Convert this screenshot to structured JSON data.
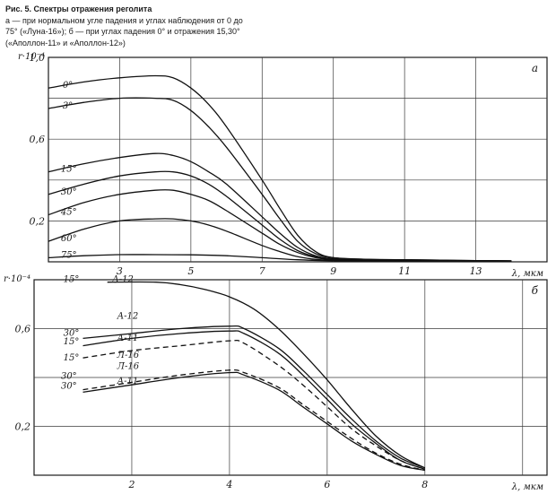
{
  "caption": {
    "title": "Рис. 5.  Спектры отражения реголита",
    "line1": "а — при нормальном угле падения и углах наблюдения от 0 до",
    "line2": "75° («Луна-16»); б — при углах падения 0° и отражения 15,30°",
    "line3": "(«Аполлон-11» и «Аполлон-12»)"
  },
  "chart_data": [
    {
      "type": "line",
      "panel_label": "а",
      "ylabel": "r·10⁻⁴",
      "xlabel": "λ, мкм",
      "xlim": [
        1,
        15
      ],
      "ylim": [
        0,
        1.0
      ],
      "x_ticks": [
        3,
        5,
        7,
        9,
        11,
        13
      ],
      "y_ticks": [
        0.2,
        0.6,
        1.0
      ],
      "y_tick_labels": [
        "0,2",
        "0,6",
        "1,0"
      ],
      "grid": true,
      "series": [
        {
          "name": "0°",
          "x": [
            1,
            2,
            3,
            4,
            4.5,
            5,
            5.5,
            6,
            7,
            7.5,
            8,
            8.5,
            9,
            10,
            11,
            12,
            13,
            14
          ],
          "y": [
            0.85,
            0.88,
            0.9,
            0.91,
            0.9,
            0.85,
            0.77,
            0.66,
            0.4,
            0.26,
            0.13,
            0.05,
            0.02,
            0.012,
            0.01,
            0.008,
            0.006,
            0.005
          ]
        },
        {
          "name": "3°",
          "x": [
            1,
            2,
            3,
            4,
            4.5,
            5,
            5.5,
            6,
            7,
            7.5,
            8,
            8.5,
            9,
            10,
            11,
            12,
            13,
            14
          ],
          "y": [
            0.75,
            0.78,
            0.8,
            0.8,
            0.79,
            0.74,
            0.66,
            0.56,
            0.33,
            0.21,
            0.1,
            0.04,
            0.02,
            0.012,
            0.01,
            0.008,
            0.006,
            0.005
          ]
        },
        {
          "name": "15°",
          "x": [
            1,
            2,
            3,
            4,
            4.5,
            5,
            5.5,
            6,
            7,
            7.5,
            8,
            8.5,
            9,
            10,
            11,
            12,
            13,
            14
          ],
          "y": [
            0.44,
            0.48,
            0.51,
            0.53,
            0.52,
            0.49,
            0.44,
            0.38,
            0.22,
            0.14,
            0.07,
            0.03,
            0.015,
            0.01,
            0.008,
            0.006,
            0.005,
            0.004
          ]
        },
        {
          "name": "30°",
          "x": [
            1,
            2,
            3,
            4,
            4.5,
            5,
            5.5,
            6,
            7,
            7.5,
            8,
            8.5,
            9,
            10,
            11,
            12,
            13,
            14
          ],
          "y": [
            0.33,
            0.38,
            0.42,
            0.44,
            0.44,
            0.42,
            0.38,
            0.32,
            0.18,
            0.11,
            0.055,
            0.025,
            0.012,
            0.008,
            0.006,
            0.005,
            0.004,
            0.004
          ]
        },
        {
          "name": "45°",
          "x": [
            1,
            2,
            3,
            4,
            4.5,
            5,
            5.5,
            6,
            7,
            7.5,
            8,
            8.5,
            9,
            10,
            11,
            12,
            13,
            14
          ],
          "y": [
            0.23,
            0.29,
            0.33,
            0.35,
            0.35,
            0.33,
            0.3,
            0.25,
            0.14,
            0.085,
            0.045,
            0.02,
            0.01,
            0.007,
            0.005,
            0.004,
            0.004,
            0.003
          ]
        },
        {
          "name": "60°",
          "x": [
            1,
            2,
            3,
            4,
            4.5,
            5,
            5.5,
            6,
            7,
            7.5,
            8,
            8.5,
            9,
            10,
            11,
            12,
            13,
            14
          ],
          "y": [
            0.1,
            0.16,
            0.2,
            0.21,
            0.21,
            0.2,
            0.18,
            0.15,
            0.08,
            0.05,
            0.025,
            0.012,
            0.007,
            0.005,
            0.004,
            0.003,
            0.003,
            0.003
          ]
        },
        {
          "name": "75°",
          "x": [
            1,
            2,
            3,
            4,
            5,
            6,
            7,
            8,
            9,
            10,
            11,
            12,
            13,
            14
          ],
          "y": [
            0.02,
            0.03,
            0.035,
            0.035,
            0.034,
            0.03,
            0.02,
            0.01,
            0.005,
            0.004,
            0.003,
            0.003,
            0.002,
            0.002
          ]
        }
      ],
      "labels": [
        {
          "text": "0°",
          "x": 1.4,
          "y": 0.85
        },
        {
          "text": "3°",
          "x": 1.4,
          "y": 0.75
        },
        {
          "text": "15°",
          "x": 1.35,
          "y": 0.44
        },
        {
          "text": "30°",
          "x": 1.35,
          "y": 0.33
        },
        {
          "text": "45°",
          "x": 1.35,
          "y": 0.23
        },
        {
          "text": "60°",
          "x": 1.35,
          "y": 0.1
        },
        {
          "text": "75°",
          "x": 1.35,
          "y": 0.02
        }
      ]
    },
    {
      "type": "line",
      "panel_label": "б",
      "ylabel": "r·10⁻⁴",
      "xlabel": "λ, мкм",
      "xlim": [
        0,
        10.5
      ],
      "ylim": [
        0,
        0.8
      ],
      "x_ticks": [
        2,
        4,
        6,
        8
      ],
      "y_ticks": [
        0.2,
        0.6
      ],
      "y_tick_labels": [
        "0,2",
        "0,6"
      ],
      "grid": true,
      "series": [
        {
          "name": "15° А-12",
          "style": "solid",
          "x": [
            1.5,
            2.5,
            3,
            3.5,
            4,
            4.5,
            5,
            5.5,
            6,
            6.5,
            7,
            7.5,
            8
          ],
          "y": [
            0.79,
            0.79,
            0.78,
            0.76,
            0.73,
            0.68,
            0.6,
            0.5,
            0.39,
            0.27,
            0.16,
            0.08,
            0.03
          ]
        },
        {
          "name": "30° А-12",
          "style": "solid",
          "x": [
            1,
            2,
            3,
            4,
            4.3,
            5,
            5.5,
            6,
            6.5,
            7,
            7.5,
            8
          ],
          "y": [
            0.56,
            0.58,
            0.6,
            0.61,
            0.6,
            0.52,
            0.43,
            0.33,
            0.23,
            0.14,
            0.07,
            0.03
          ]
        },
        {
          "name": "15° А-11",
          "style": "solid",
          "x": [
            1,
            2,
            3,
            4,
            4.3,
            5,
            5.5,
            6,
            6.5,
            7,
            7.5,
            8
          ],
          "y": [
            0.53,
            0.56,
            0.58,
            0.59,
            0.58,
            0.5,
            0.41,
            0.31,
            0.21,
            0.13,
            0.06,
            0.025
          ]
        },
        {
          "name": "15° Л-16",
          "style": "dashed",
          "x": [
            1,
            2,
            3,
            4,
            4.3,
            5,
            5.5,
            6,
            6.5,
            7,
            7.5,
            8
          ],
          "y": [
            0.48,
            0.51,
            0.53,
            0.55,
            0.54,
            0.45,
            0.37,
            0.28,
            0.19,
            0.12,
            0.06,
            0.025
          ]
        },
        {
          "name": "30° Л-16",
          "style": "dashed",
          "x": [
            1,
            2,
            3,
            4,
            4.3,
            5,
            5.5,
            6,
            6.5,
            7,
            7.5,
            8
          ],
          "y": [
            0.35,
            0.38,
            0.41,
            0.43,
            0.42,
            0.36,
            0.29,
            0.22,
            0.15,
            0.09,
            0.045,
            0.02
          ]
        },
        {
          "name": "30° А-11",
          "style": "solid",
          "x": [
            1,
            2,
            3,
            4,
            4.3,
            5,
            5.5,
            6,
            6.5,
            7,
            7.5,
            8
          ],
          "y": [
            0.34,
            0.37,
            0.4,
            0.42,
            0.41,
            0.35,
            0.28,
            0.21,
            0.14,
            0.085,
            0.04,
            0.02
          ]
        }
      ],
      "labels": [
        {
          "text": "15°",
          "x": 0.6,
          "y": 0.79
        },
        {
          "text": "А-12",
          "x": 1.6,
          "y": 0.79
        },
        {
          "text": "А-12",
          "x": 1.7,
          "y": 0.64
        },
        {
          "text": "30°",
          "x": 0.6,
          "y": 0.57
        },
        {
          "text": "15°",
          "x": 0.6,
          "y": 0.535
        },
        {
          "text": "А-11",
          "x": 1.7,
          "y": 0.55
        },
        {
          "text": "15°",
          "x": 0.6,
          "y": 0.47
        },
        {
          "text": "Л-16",
          "x": 1.7,
          "y": 0.48
        },
        {
          "text": "Л-16",
          "x": 1.7,
          "y": 0.435
        },
        {
          "text": "30°",
          "x": 0.55,
          "y": 0.395
        },
        {
          "text": "30°",
          "x": 0.55,
          "y": 0.355
        },
        {
          "text": "А-11",
          "x": 1.7,
          "y": 0.375
        }
      ]
    }
  ]
}
